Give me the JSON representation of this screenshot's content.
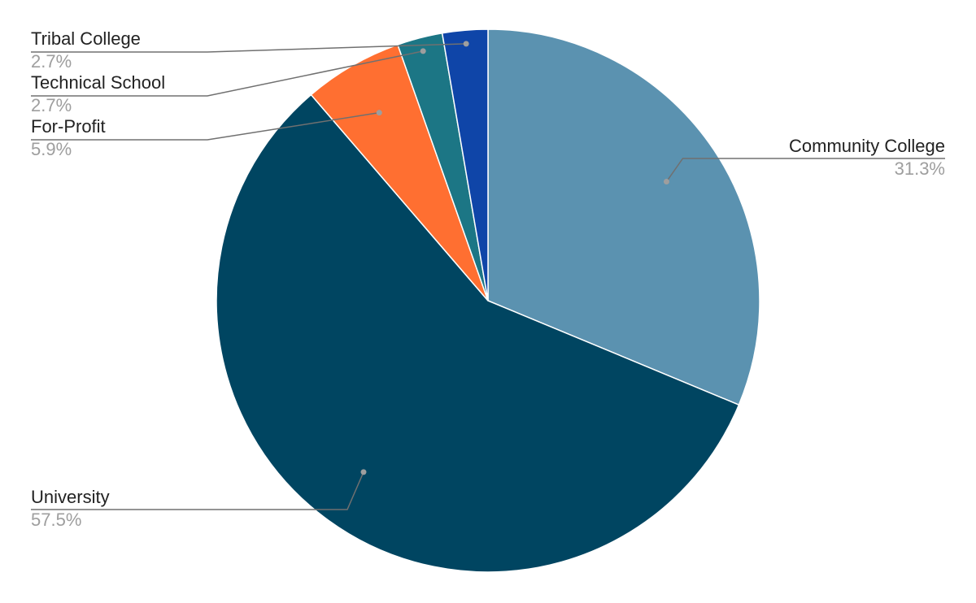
{
  "chart_data": {
    "type": "pie",
    "title": "",
    "legend": "none",
    "slices": [
      {
        "label": "Community College",
        "value": 31.3,
        "display": "31.3%",
        "color": "#5b92b0"
      },
      {
        "label": "University",
        "value": 57.5,
        "display": "57.5%",
        "color": "#004561"
      },
      {
        "label": "For-Profit",
        "value": 5.9,
        "display": "5.9%",
        "color": "#ff6f31"
      },
      {
        "label": "Technical School",
        "value": 2.7,
        "display": "2.7%",
        "color": "#1c7685"
      },
      {
        "label": "Tribal College",
        "value": 2.7,
        "display": "2.7%",
        "color": "#0f45a8"
      }
    ]
  }
}
